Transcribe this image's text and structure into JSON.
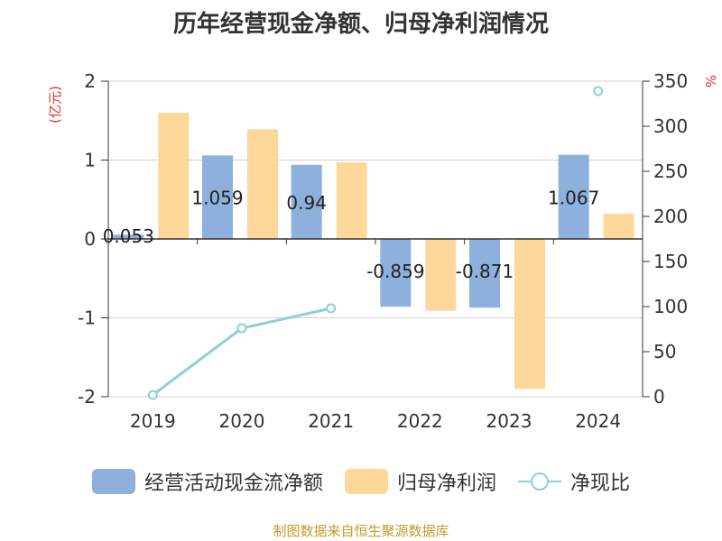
{
  "chart_data": {
    "type": "bar",
    "title": "历年经营现金净额、归母净利润情况",
    "categories": [
      "2019",
      "2020",
      "2021",
      "2022",
      "2023",
      "2024"
    ],
    "left_unit": "(亿元)",
    "right_unit": "%",
    "left_ticks": [
      "2",
      "1",
      "0",
      "-1",
      "-2"
    ],
    "right_ticks": [
      "350",
      "300",
      "250",
      "200",
      "150",
      "100",
      "50",
      "0"
    ],
    "ylim_left": [
      -2,
      2
    ],
    "ylim_right": [
      0,
      350
    ],
    "series": [
      {
        "name": "经营活动现金流净额",
        "type": "bar",
        "axis": "left",
        "color": "#8eb0dc",
        "values": [
          0.053,
          1.059,
          0.94,
          -0.859,
          -0.871,
          1.067
        ],
        "labels": [
          "0.053",
          "1.059",
          "0.94",
          "-0.859",
          "-0.871",
          "1.067"
        ]
      },
      {
        "name": "归母净利润",
        "type": "bar",
        "axis": "left",
        "color": "#fdd89a",
        "values": [
          1.6,
          1.39,
          0.97,
          -0.91,
          -1.9,
          0.32
        ]
      },
      {
        "name": "净现比",
        "type": "line",
        "axis": "right",
        "color": "#8dd0d8",
        "values": [
          2,
          76,
          98,
          null,
          null,
          339
        ]
      }
    ],
    "grid": true,
    "legend_position": "bottom"
  },
  "source": "制图数据来自恒生聚源数据库"
}
